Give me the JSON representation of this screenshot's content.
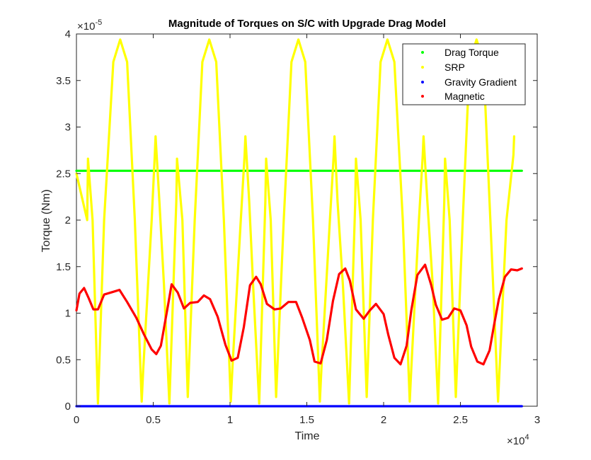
{
  "chart_data": {
    "type": "line",
    "title": "Magnitude of Torques on S/C with Upgrade Drag Model",
    "xlabel": "Time",
    "ylabel": "Torque (Nm)",
    "x_exponent_label": "×10",
    "x_exponent_power": "4",
    "y_exponent_label": "×10",
    "y_exponent_power": "-5",
    "x_scale": 10000,
    "y_scale": 1e-05,
    "xlim": [
      0,
      30000
    ],
    "ylim": [
      0,
      4e-05
    ],
    "x_ticks": [
      0,
      5000,
      10000,
      15000,
      20000,
      25000,
      30000
    ],
    "x_tick_labels": [
      "0",
      "0.5",
      "1",
      "1.5",
      "2",
      "2.5",
      "3"
    ],
    "y_ticks": [
      0,
      5e-06,
      1e-05,
      1.5e-05,
      2e-05,
      2.5e-05,
      3e-05,
      3.5e-05,
      4e-05
    ],
    "y_tick_labels": [
      "0",
      "0.5",
      "1",
      "1.5",
      "2",
      "2.5",
      "3",
      "3.5",
      "4"
    ],
    "grid": false,
    "legend_position": "top-right",
    "series": [
      {
        "name": "Drag Torque",
        "color": "#00ff00",
        "x": [
          0,
          29000
        ],
        "y": [
          2.53e-05,
          2.53e-05
        ]
      },
      {
        "name": "SRP",
        "color": "#ffff00",
        "x": [
          0,
          700,
          750,
          1050,
          1400,
          1800,
          2400,
          2850,
          3300,
          3800,
          4250,
          4350,
          4900,
          5100,
          5150,
          5400,
          5700,
          6050,
          6500,
          6550,
          6900,
          7250,
          7700,
          8200,
          8650,
          9100,
          9600,
          10050,
          10150,
          10700,
          10950,
          11000,
          11250,
          11500,
          11900,
          12300,
          12350,
          12650,
          13000,
          13500,
          14000,
          14450,
          14900,
          15400,
          15850,
          15950,
          16500,
          16750,
          16800,
          17000,
          17350,
          17750,
          18150,
          18200,
          18500,
          18900,
          19300,
          19800,
          20250,
          20700,
          21250,
          21700,
          21800,
          22300,
          22550,
          22600,
          22850,
          23200,
          23550,
          23950,
          24000,
          24300,
          24700,
          25150,
          25600,
          26050,
          26500,
          26950,
          27450,
          27550,
          28000,
          28450,
          28500
        ],
        "y": [
          2.5e-05,
          2e-05,
          2.66e-05,
          2e-05,
          3e-07,
          2e-05,
          3.7e-05,
          3.94e-05,
          3.7e-05,
          2e-05,
          5e-07,
          4e-06,
          2e-05,
          2.7e-05,
          2.9e-05,
          2.2e-05,
          1.3e-05,
          3e-07,
          2.2e-05,
          2.66e-05,
          2e-05,
          1e-06,
          2e-05,
          3.7e-05,
          3.94e-05,
          3.7e-05,
          2e-05,
          5e-07,
          4e-06,
          2e-05,
          2.7e-05,
          2.9e-05,
          2.2e-05,
          1.3e-05,
          3e-07,
          2.2e-05,
          2.66e-05,
          2e-05,
          1e-06,
          2e-05,
          3.7e-05,
          3.94e-05,
          3.7e-05,
          2e-05,
          5e-07,
          4e-06,
          2e-05,
          2.7e-05,
          2.9e-05,
          2.2e-05,
          1.3e-05,
          3e-07,
          2.2e-05,
          2.66e-05,
          2e-05,
          1e-06,
          2e-05,
          3.7e-05,
          3.94e-05,
          3.7e-05,
          2e-05,
          5e-07,
          4e-06,
          2e-05,
          2.7e-05,
          2.9e-05,
          2.2e-05,
          1.3e-05,
          3e-07,
          2.2e-05,
          2.66e-05,
          2e-05,
          1e-06,
          2e-05,
          3.7e-05,
          3.94e-05,
          3.7e-05,
          2e-05,
          5e-07,
          4e-06,
          2e-05,
          2.7e-05,
          2.9e-05
        ]
      },
      {
        "name": "Gravity Gradient",
        "color": "#0000ff",
        "x": [
          0,
          29000
        ],
        "y": [
          0,
          0
        ]
      },
      {
        "name": "Magnetic",
        "color": "#ff0000",
        "x": [
          0,
          200,
          500,
          800,
          1100,
          1400,
          1800,
          2400,
          2800,
          3300,
          3900,
          4400,
          4900,
          5200,
          5500,
          6000,
          6200,
          6600,
          7000,
          7400,
          7900,
          8300,
          8700,
          9200,
          9700,
          10100,
          10500,
          10900,
          11300,
          11700,
          12000,
          12400,
          12900,
          13300,
          13800,
          14300,
          14700,
          15200,
          15500,
          15900,
          16300,
          16700,
          17100,
          17500,
          17800,
          18200,
          18700,
          19100,
          19500,
          20000,
          20300,
          20700,
          21100,
          21500,
          21800,
          22200,
          22700,
          23100,
          23400,
          23800,
          24200,
          24600,
          25000,
          25400,
          25700,
          26100,
          26500,
          26900,
          27200,
          27500,
          27900,
          28300,
          28700,
          29000
        ],
        "y": [
          1.03e-05,
          1.21e-05,
          1.27e-05,
          1.16e-05,
          1.04e-05,
          1.04e-05,
          1.2e-05,
          1.23e-05,
          1.25e-05,
          1.12e-05,
          9.5e-06,
          7.7e-06,
          6.1e-06,
          5.6e-06,
          6.5e-06,
          1.12e-05,
          1.31e-05,
          1.22e-05,
          1.05e-05,
          1.11e-05,
          1.12e-05,
          1.19e-05,
          1.15e-05,
          9.6e-06,
          6.6e-06,
          4.9e-06,
          5.2e-06,
          8.5e-06,
          1.3e-05,
          1.39e-05,
          1.31e-05,
          1.1e-05,
          1.04e-05,
          1.05e-05,
          1.12e-05,
          1.12e-05,
          9.5e-06,
          7.1e-06,
          4.8e-06,
          4.6e-06,
          7.1e-06,
          1.13e-05,
          1.42e-05,
          1.48e-05,
          1.35e-05,
          1.04e-05,
          9.4e-06,
          1.03e-05,
          1.1e-05,
          9.9e-06,
          7.7e-06,
          5.2e-06,
          4.5e-06,
          6.5e-06,
          1.03e-05,
          1.41e-05,
          1.52e-05,
          1.3e-05,
          1.09e-05,
          9.3e-06,
          9.5e-06,
          1.05e-05,
          1.03e-05,
          8.7e-06,
          6.4e-06,
          4.8e-06,
          4.5e-06,
          6e-06,
          8.8e-06,
          1.15e-05,
          1.39e-05,
          1.47e-05,
          1.46e-05,
          1.48e-05
        ]
      }
    ]
  }
}
